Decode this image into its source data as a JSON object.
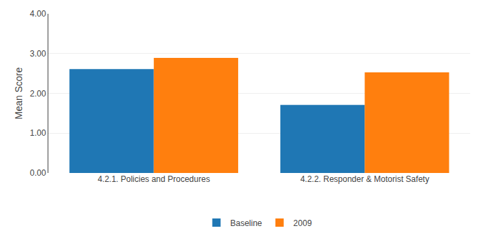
{
  "chart_data": {
    "type": "bar",
    "categories": [
      "4.2.1. Policies and Procedures",
      "4.2.2. Responder & Motorist Safety"
    ],
    "series": [
      {
        "name": "Baseline",
        "values": [
          2.61,
          1.71
        ]
      },
      {
        "name": "2009",
        "values": [
          2.89,
          2.53
        ]
      }
    ],
    "ylabel": "Mean Score",
    "ylim": [
      0.0,
      4.0
    ],
    "yticks": [
      {
        "value": 0.0,
        "label": "0.00"
      },
      {
        "value": 1.0,
        "label": "1.00"
      },
      {
        "value": 2.0,
        "label": "2.00"
      },
      {
        "value": 3.0,
        "label": "3.00"
      },
      {
        "value": 4.0,
        "label": "4.00"
      }
    ],
    "grid": true,
    "legend": "bottom"
  }
}
